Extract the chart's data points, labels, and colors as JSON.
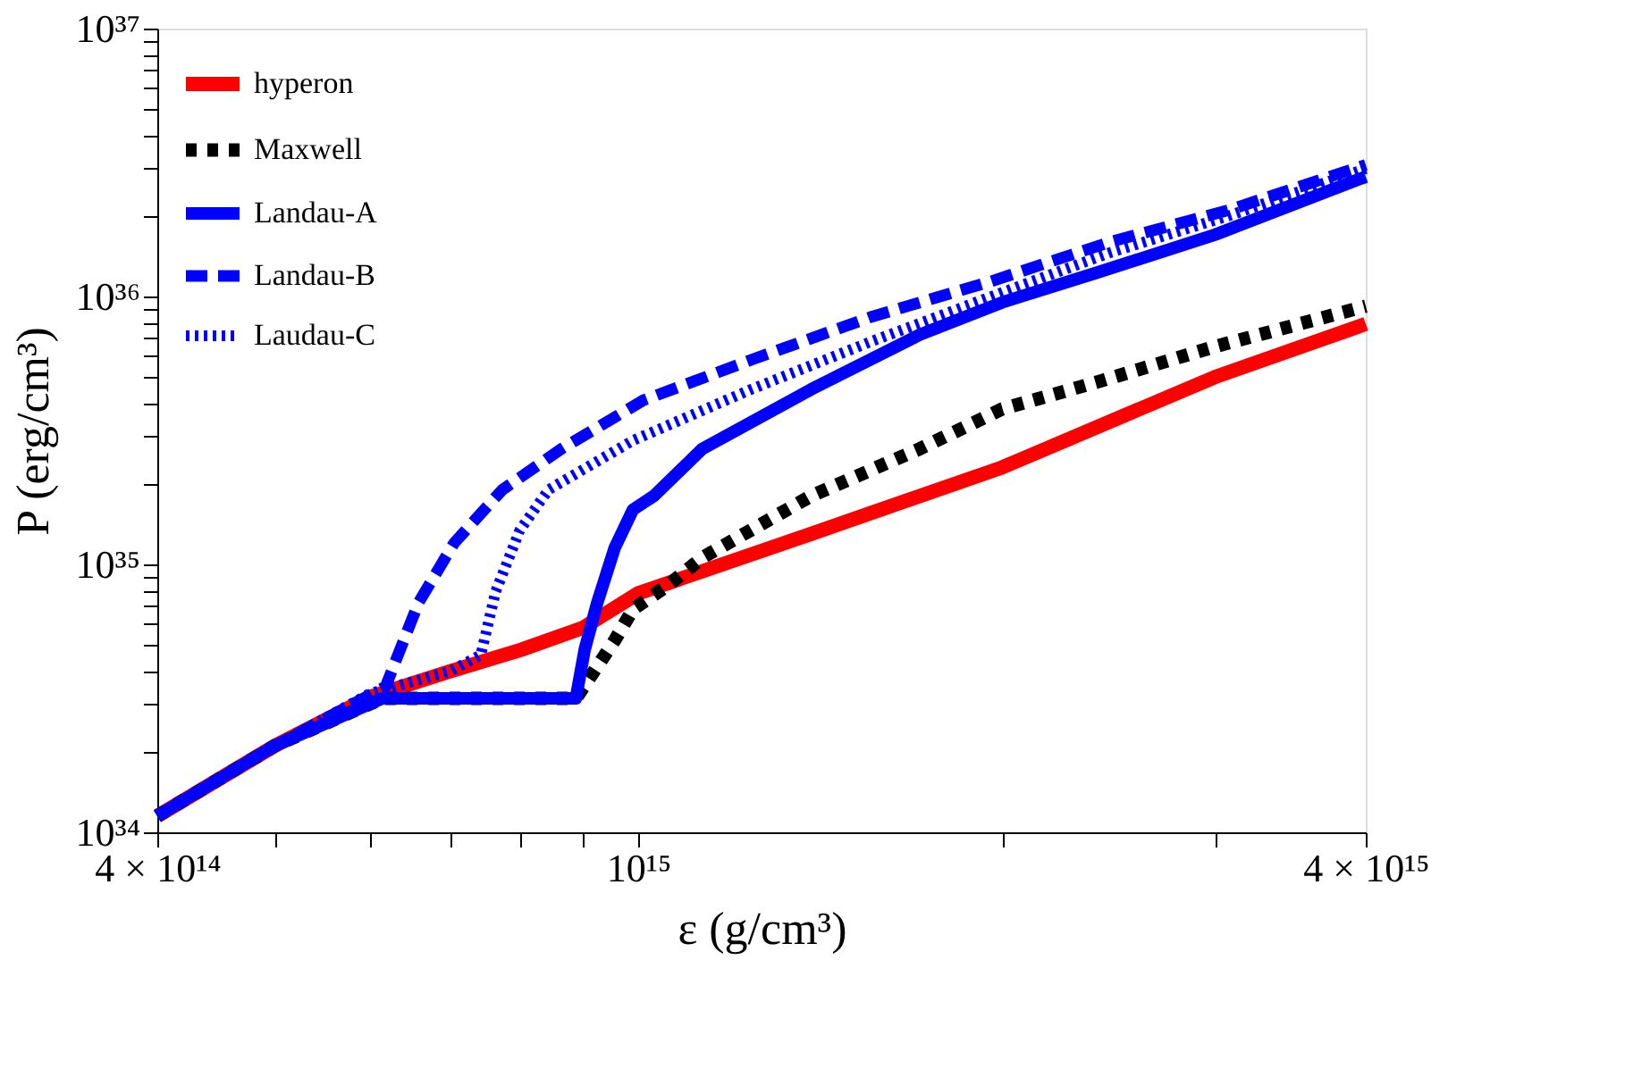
{
  "chart_data": {
    "type": "line",
    "xlabel": "ε (g/cm³)",
    "ylabel": "P (erg/cm³)",
    "log": "xy",
    "grid": false,
    "legend": "top left",
    "marker": "none",
    "xlim": [
      400000000000000.0,
      4000000000000000.0
    ],
    "xticks": [
      {
        "value": 400000000000000.0,
        "label": "4 × 10¹⁴"
      },
      {
        "value": 500000000000000.0,
        "label": null
      },
      {
        "value": 600000000000000.0,
        "label": null
      },
      {
        "value": 700000000000000.0,
        "label": null
      },
      {
        "value": 800000000000000.0,
        "label": null
      },
      {
        "value": 900000000000000.0,
        "label": null
      },
      {
        "value": 1000000000000000.0,
        "label": "10¹⁵"
      },
      {
        "value": 2000000000000000.0,
        "label": null
      },
      {
        "value": 3000000000000000.0,
        "label": null
      },
      {
        "value": 4000000000000000.0,
        "label": "4 × 10¹⁵"
      }
    ],
    "ylim": [
      1e+34,
      1e+37
    ],
    "yticks": [
      {
        "value": 1e+34,
        "label": "10³⁴"
      },
      {
        "value": 2e+34,
        "label": null
      },
      {
        "value": 3e+34,
        "label": null
      },
      {
        "value": 4e+34,
        "label": null
      },
      {
        "value": 5e+34,
        "label": null
      },
      {
        "value": 6e+34,
        "label": null
      },
      {
        "value": 7e+34,
        "label": null
      },
      {
        "value": 8e+34,
        "label": null
      },
      {
        "value": 9e+34,
        "label": null
      },
      {
        "value": 1e+35,
        "label": "10³⁵"
      },
      {
        "value": 2e+35,
        "label": null
      },
      {
        "value": 3e+35,
        "label": null
      },
      {
        "value": 4e+35,
        "label": null
      },
      {
        "value": 5e+35,
        "label": null
      },
      {
        "value": 6e+35,
        "label": null
      },
      {
        "value": 7e+35,
        "label": null
      },
      {
        "value": 8e+35,
        "label": null
      },
      {
        "value": 9e+35,
        "label": null
      },
      {
        "value": 1e+36,
        "label": "10³⁶"
      },
      {
        "value": 2e+36,
        "label": null
      },
      {
        "value": 3e+36,
        "label": null
      },
      {
        "value": 4e+36,
        "label": null
      },
      {
        "value": 5e+36,
        "label": null
      },
      {
        "value": 6e+36,
        "label": null
      },
      {
        "value": 7e+36,
        "label": null
      },
      {
        "value": 8e+36,
        "label": null
      },
      {
        "value": 9e+36,
        "label": null
      },
      {
        "value": 1e+37,
        "label": "10³⁷"
      }
    ],
    "series": [
      {
        "name": "hyperon",
        "color": "#ff0000",
        "line_style": "solid",
        "x": [
          400000000000000.0,
          500000000000000.0,
          600000000000000.0,
          700000000000000.0,
          800000000000000.0,
          900000000000000.0,
          1000000000000000.0,
          1390000000000000.0,
          2000000000000000.0,
          3000000000000000.0,
          4000000000000000.0
        ],
        "values": [
          1.15e+34,
          2.1e+34,
          3.2e+34,
          4e+34,
          4.8e+34,
          5.8e+34,
          7.8e+34,
          1.3e+35,
          2.3e+35,
          5e+35,
          7.9e+35
        ]
      },
      {
        "name": "Maxwell",
        "color": "#000000",
        "line_style": "dotted",
        "x": [
          400000000000000.0,
          500000000000000.0,
          614000000000000.0,
          888000000000000.0,
          956000000000000.0,
          990000000000000.0,
          1060000000000000.0,
          1130000000000000.0,
          1390000000000000.0,
          1710000000000000.0,
          2000000000000000.0,
          2400000000000000.0,
          3000000000000000.0,
          4000000000000000.0
        ],
        "values": [
          1.15e+34,
          2.1e+34,
          3.16e+34,
          3.16e+34,
          5.2e+34,
          6.8e+34,
          8.4e+34,
          1.06e+35,
          1.8e+35,
          2.7e+35,
          3.8e+35,
          4.8e+35,
          6.5e+35,
          9.2e+35
        ]
      },
      {
        "name": "Landau-A",
        "color": "#0000ff",
        "line_style": "solid",
        "x": [
          400000000000000.0,
          500000000000000.0,
          614000000000000.0,
          888000000000000.0,
          903000000000000.0,
          925000000000000.0,
          956000000000000.0,
          990000000000000.0,
          1030000000000000.0,
          1130000000000000.0,
          1390000000000000.0,
          1710000000000000.0,
          2000000000000000.0,
          2400000000000000.0,
          3000000000000000.0,
          4000000000000000.0
        ],
        "values": [
          1.15e+34,
          2.1e+34,
          3.16e+34,
          3.16e+34,
          4.8e+34,
          7.2e+34,
          1.15e+35,
          1.6e+35,
          1.8e+35,
          2.7e+35,
          4.5e+35,
          7.2e+35,
          9.5e+35,
          1.23e+36,
          1.7e+36,
          2.8e+36
        ]
      },
      {
        "name": "Landau-B",
        "color": "#0000ff",
        "line_style": "dashed",
        "x": [
          400000000000000.0,
          500000000000000.0,
          618000000000000.0,
          658000000000000.0,
          704000000000000.0,
          772000000000000.0,
          864000000000000.0,
          1010000000000000.0,
          1240000000000000.0,
          1560000000000000.0,
          1960000000000000.0,
          2460000000000000.0,
          3080000000000000.0,
          4000000000000000.0
        ],
        "values": [
          1.15e+34,
          2.1e+34,
          3.5e+34,
          7.2e+34,
          1.2e+35,
          1.9e+35,
          2.7e+35,
          4.1e+35,
          5.8e+35,
          8.4e+35,
          1.14e+36,
          1.6e+36,
          2.1e+36,
          3.1e+36
        ]
      },
      {
        "name": "Laudau-C",
        "color": "#0000ff",
        "line_style": "dotted",
        "x": [
          400000000000000.0,
          500000000000000.0,
          600000000000000.0,
          700000000000000.0,
          741000000000000.0,
          762000000000000.0,
          798000000000000.0,
          843000000000000.0,
          990000000000000.0,
          1240000000000000.0,
          1560000000000000.0,
          1960000000000000.0,
          2460000000000000.0,
          3080000000000000.0,
          4000000000000000.0
        ],
        "values": [
          1.15e+34,
          2.1e+34,
          3.3e+34,
          4e+34,
          4.6e+34,
          7.9e+34,
          1.34e+35,
          1.9e+35,
          2.9e+35,
          4.5e+35,
          6.8e+35,
          1e+36,
          1.46e+36,
          2e+36,
          3e+36
        ]
      }
    ]
  }
}
